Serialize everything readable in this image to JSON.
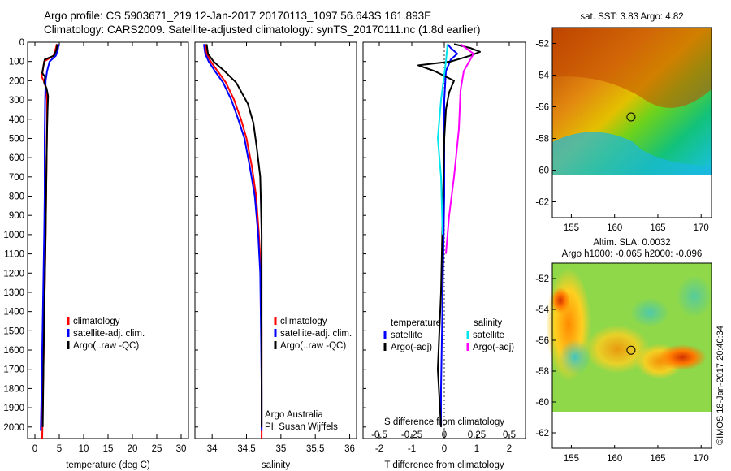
{
  "header": {
    "line1": "Argo profile: CS 5903671_219 12-Jan-2017 20170113_1097 56.643S 161.893E",
    "line2": "Climatology: CARS2009. Satellite-adjusted climatology: synTS_20170111.nc (1.8d earlier)"
  },
  "colors": {
    "climatology": "#ff0000",
    "satellite": "#0000ff",
    "argo": "#000000",
    "satellite_salinity": "#00e5ee",
    "argo_salinity_adj": "#ff00ff"
  },
  "chart_data": [
    {
      "type": "line",
      "name": "temperature-profile",
      "xlabel": "temperature (deg C)",
      "ylabel": "",
      "xlim": [
        -1.5,
        31.5
      ],
      "ylim": [
        2060,
        0
      ],
      "y_inverted": true,
      "xticks": [
        0,
        5,
        10,
        15,
        20,
        25,
        30
      ],
      "yticks": [
        0,
        100,
        200,
        300,
        400,
        500,
        600,
        700,
        800,
        900,
        1000,
        1100,
        1200,
        1300,
        1400,
        1500,
        1600,
        1700,
        1800,
        1900,
        2000
      ],
      "legend": {
        "position": "lower-middle",
        "entries": [
          "climatology",
          "satellite-adj. clim.",
          "Argo(..raw -QC)"
        ]
      },
      "series": [
        {
          "name": "climatology",
          "color": "#ff0000",
          "points": [
            [
              4.5,
              10
            ],
            [
              4.2,
              40
            ],
            [
              3.8,
              70
            ],
            [
              1.9,
              100
            ],
            [
              1.6,
              150
            ],
            [
              1.4,
              180
            ],
            [
              1.8,
              200
            ],
            [
              2.3,
              240
            ],
            [
              2.5,
              300
            ],
            [
              2.5,
              400
            ],
            [
              2.4,
              600
            ],
            [
              2.3,
              800
            ],
            [
              2.2,
              1000
            ],
            [
              2.0,
              1300
            ],
            [
              1.8,
              1600
            ],
            [
              1.6,
              1900
            ],
            [
              1.5,
              2060
            ]
          ]
        },
        {
          "name": "satellite-adj. clim.",
          "color": "#0000ff",
          "points": [
            [
              4.9,
              10
            ],
            [
              4.7,
              40
            ],
            [
              4.3,
              70
            ],
            [
              3.0,
              100
            ],
            [
              2.5,
              150
            ],
            [
              2.2,
              200
            ],
            [
              2.1,
              300
            ],
            [
              2.0,
              500
            ],
            [
              2.0,
              800
            ],
            [
              1.9,
              1000
            ],
            [
              1.7,
              1300
            ],
            [
              1.5,
              1600
            ],
            [
              1.3,
              1900
            ],
            [
              1.2,
              2020
            ]
          ]
        },
        {
          "name": "Argo(..raw -QC)",
          "color": "#000000",
          "points": [
            [
              4.6,
              10
            ],
            [
              4.4,
              40
            ],
            [
              3.9,
              70
            ],
            [
              2.0,
              90
            ],
            [
              1.7,
              130
            ],
            [
              1.5,
              160
            ],
            [
              2.1,
              180
            ],
            [
              1.9,
              210
            ],
            [
              2.4,
              240
            ],
            [
              2.7,
              280
            ],
            [
              2.6,
              350
            ],
            [
              2.5,
              450
            ],
            [
              2.4,
              600
            ],
            [
              2.3,
              800
            ],
            [
              2.2,
              1000
            ],
            [
              2.0,
              1300
            ],
            [
              1.8,
              1600
            ],
            [
              1.7,
              1800
            ],
            [
              1.6,
              2000
            ]
          ]
        }
      ]
    },
    {
      "type": "line",
      "name": "salinity-profile",
      "xlabel": "salinity",
      "xlim": [
        33.75,
        36.1
      ],
      "ylim": [
        2060,
        0
      ],
      "y_inverted": true,
      "xticks": [
        34,
        34.5,
        35,
        35.5,
        36
      ],
      "legend": {
        "position": "lower-right",
        "entries": [
          "climatology",
          "satellite-adj. clim.",
          "Argo(..raw -QC)"
        ]
      },
      "annotation": [
        "Argo Australia",
        "PI: Susan Wijffels"
      ],
      "series": [
        {
          "name": "climatology",
          "color": "#ff0000",
          "points": [
            [
              33.9,
              10
            ],
            [
              33.92,
              60
            ],
            [
              33.98,
              100
            ],
            [
              34.08,
              150
            ],
            [
              34.2,
              210
            ],
            [
              34.32,
              300
            ],
            [
              34.42,
              400
            ],
            [
              34.5,
              500
            ],
            [
              34.58,
              650
            ],
            [
              34.64,
              800
            ],
            [
              34.68,
              1000
            ],
            [
              34.71,
              1200
            ],
            [
              34.72,
              1500
            ],
            [
              34.72,
              1800
            ],
            [
              34.72,
              2060
            ]
          ]
        },
        {
          "name": "satellite-adj. clim.",
          "color": "#0000ff",
          "points": [
            [
              33.88,
              10
            ],
            [
              33.9,
              60
            ],
            [
              33.95,
              100
            ],
            [
              34.04,
              150
            ],
            [
              34.16,
              210
            ],
            [
              34.28,
              300
            ],
            [
              34.38,
              400
            ],
            [
              34.47,
              500
            ],
            [
              34.55,
              650
            ],
            [
              34.62,
              800
            ],
            [
              34.67,
              1000
            ],
            [
              34.7,
              1200
            ],
            [
              34.71,
              1500
            ],
            [
              34.72,
              1800
            ],
            [
              34.72,
              2020
            ]
          ]
        },
        {
          "name": "Argo(..raw -QC)",
          "color": "#000000",
          "points": [
            [
              33.92,
              10
            ],
            [
              33.94,
              60
            ],
            [
              34.02,
              100
            ],
            [
              34.18,
              150
            ],
            [
              34.35,
              210
            ],
            [
              34.52,
              320
            ],
            [
              34.6,
              420
            ],
            [
              34.65,
              550
            ],
            [
              34.7,
              700
            ],
            [
              34.71,
              850
            ],
            [
              34.72,
              1000
            ],
            [
              34.72,
              1300
            ],
            [
              34.72,
              1600
            ],
            [
              34.72,
              1900
            ],
            [
              34.72,
              2000
            ]
          ]
        }
      ]
    },
    {
      "type": "line",
      "name": "difference-from-climatology",
      "xlabel": "T difference from climatology",
      "xlabel_top": "S difference from climatology",
      "xlim": [
        -2.5,
        2.5
      ],
      "ylim": [
        2060,
        0
      ],
      "y_inverted": true,
      "xticks": [
        -2,
        -1,
        0,
        1,
        2
      ],
      "xtick_labels": [
        "-2",
        "-1",
        "0",
        "1",
        "2"
      ],
      "sticks": [
        "-0.5",
        "-0.25",
        "0",
        "0.25",
        "0.5"
      ],
      "legend": {
        "position": "lower",
        "groups": [
          {
            "title": "temperature",
            "entries": [
              "satellite",
              "Argo(-adj)"
            ]
          },
          {
            "title": "salinity",
            "entries": [
              "satellite",
              "Argo(-adj)"
            ]
          }
        ]
      },
      "series": [
        {
          "name": "temperature satellite",
          "color": "#0000ff",
          "points": [
            [
              0.1,
              10
            ],
            [
              0.2,
              30
            ],
            [
              0.4,
              60
            ],
            [
              0.2,
              90
            ],
            [
              0.05,
              150
            ],
            [
              0.0,
              300
            ],
            [
              0.0,
              800
            ],
            [
              -0.05,
              1300
            ],
            [
              -0.1,
              1800
            ],
            [
              -0.1,
              2000
            ]
          ]
        },
        {
          "name": "temperature Argo(-adj)",
          "color": "#000000",
          "points": [
            [
              0.3,
              10
            ],
            [
              0.8,
              30
            ],
            [
              1.1,
              50
            ],
            [
              0.8,
              70
            ],
            [
              0.2,
              100
            ],
            [
              -0.8,
              120
            ],
            [
              -0.3,
              150
            ],
            [
              0.3,
              200
            ],
            [
              0.15,
              260
            ],
            [
              0.05,
              350
            ],
            [
              0.0,
              500
            ],
            [
              -0.05,
              900
            ],
            [
              -0.1,
              1300
            ],
            [
              -0.2,
              1700
            ],
            [
              -0.1,
              2000
            ]
          ]
        },
        {
          "name": "salinity satellite",
          "color": "#00e5ee",
          "points": [
            [
              0.1,
              10
            ],
            [
              0.05,
              100
            ],
            [
              -0.1,
              300
            ],
            [
              -0.2,
              500
            ],
            [
              -0.1,
              700
            ],
            [
              -0.05,
              1000
            ]
          ]
        },
        {
          "name": "salinity Argo(-adj)",
          "color": "#ff00ff",
          "points": [
            [
              0.5,
              10
            ],
            [
              0.9,
              60
            ],
            [
              0.6,
              150
            ],
            [
              0.5,
              250
            ],
            [
              0.45,
              450
            ],
            [
              0.3,
              700
            ],
            [
              0.15,
              900
            ],
            [
              0.05,
              1100
            ]
          ]
        }
      ]
    },
    {
      "type": "heatmap",
      "name": "sst-map",
      "title": "sat. SST: 3.83  Argo: 4.82",
      "xlim": [
        152.8,
        171.2
      ],
      "ylim": [
        -63,
        -51
      ],
      "xticks": [
        155,
        160,
        165,
        170
      ],
      "yticks": [
        -52,
        -54,
        -56,
        -58,
        -60,
        -62
      ],
      "marker": {
        "lon": 161.893,
        "lat": -56.643
      }
    },
    {
      "type": "heatmap",
      "name": "sla-map",
      "title": "Altim. SLA: 0.0032",
      "subtitle": "Argo h1000: -0.065 h2000: -0.096",
      "xlim": [
        152.8,
        171.2
      ],
      "ylim": [
        -63,
        -51
      ],
      "xticks": [
        155,
        160,
        165,
        170
      ],
      "yticks": [
        -52,
        -54,
        -56,
        -58,
        -60,
        -62
      ],
      "marker": {
        "lon": 161.893,
        "lat": -56.643
      }
    }
  ],
  "credit": "©IMOS 18-Jan-2017 20:40:34"
}
